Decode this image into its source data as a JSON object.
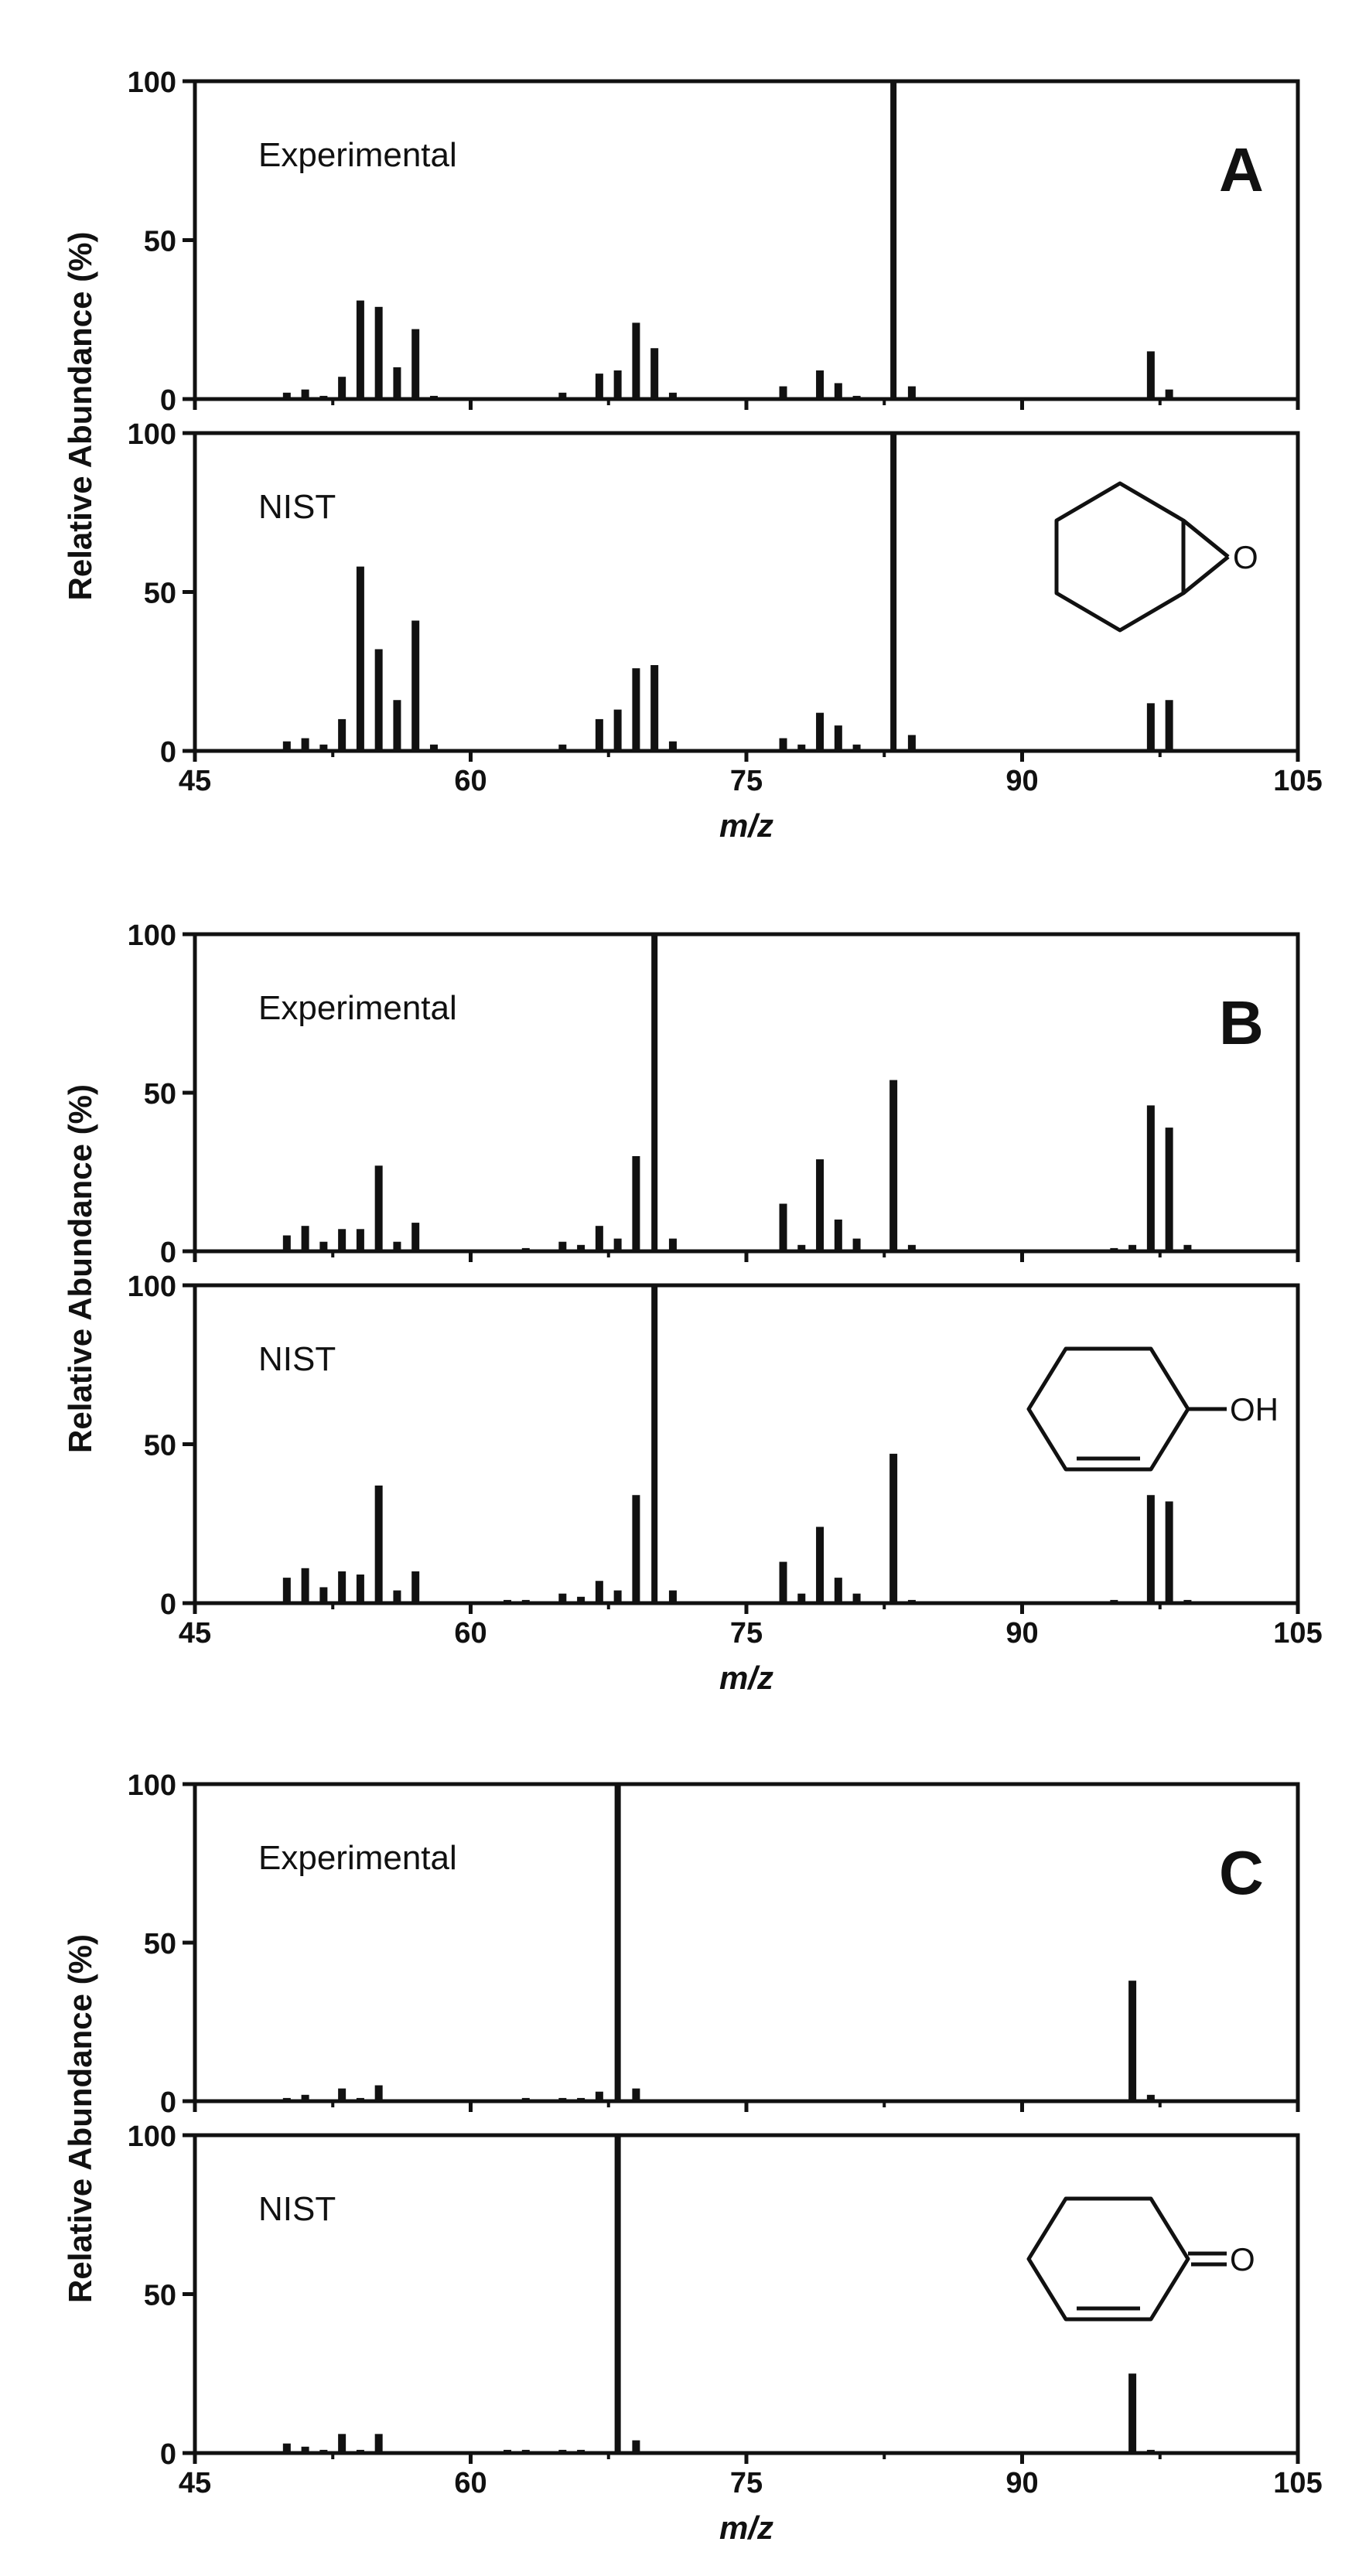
{
  "chart_data": [
    {
      "type": "bar",
      "panel": "A",
      "xlabel": "m/z",
      "ylabel": "Relative Abundance (%)",
      "xlim": [
        45,
        105
      ],
      "ylim": [
        0,
        100
      ],
      "xticks": [
        "45",
        "60",
        "75",
        "90",
        "105"
      ],
      "yticks": [
        "0",
        "50",
        "100"
      ],
      "structure_label": "O",
      "structure": "cyclohexene-oxide",
      "subplots": [
        {
          "label": "Experimental",
          "x": [
            50,
            51,
            52,
            53,
            54,
            55,
            56,
            57,
            58,
            65,
            67,
            68,
            69,
            70,
            71,
            77,
            79,
            80,
            81,
            83,
            84,
            97,
            98
          ],
          "y": [
            2,
            3,
            1,
            7,
            31,
            29,
            10,
            22,
            1,
            2,
            8,
            9,
            24,
            16,
            2,
            4,
            9,
            5,
            1,
            100,
            4,
            15,
            3
          ]
        },
        {
          "label": "NIST",
          "x": [
            50,
            51,
            52,
            53,
            54,
            55,
            56,
            57,
            58,
            65,
            67,
            68,
            69,
            70,
            71,
            77,
            78,
            79,
            80,
            81,
            83,
            84,
            97,
            98
          ],
          "y": [
            3,
            4,
            2,
            10,
            58,
            32,
            16,
            41,
            2,
            2,
            10,
            13,
            26,
            27,
            3,
            4,
            2,
            12,
            8,
            2,
            100,
            5,
            15,
            16
          ]
        }
      ]
    },
    {
      "type": "bar",
      "panel": "B",
      "xlabel": "m/z",
      "ylabel": "Relative Abundance (%)",
      "xlim": [
        45,
        105
      ],
      "ylim": [
        0,
        100
      ],
      "xticks": [
        "45",
        "60",
        "75",
        "90",
        "105"
      ],
      "yticks": [
        "0",
        "50",
        "100"
      ],
      "structure_label": "OH",
      "structure": "cyclohex-2-en-1-ol",
      "subplots": [
        {
          "label": "Experimental",
          "x": [
            50,
            51,
            52,
            53,
            54,
            55,
            56,
            57,
            63,
            65,
            66,
            67,
            68,
            69,
            70,
            71,
            77,
            78,
            79,
            80,
            81,
            83,
            84,
            95,
            96,
            97,
            98,
            99
          ],
          "y": [
            5,
            8,
            3,
            7,
            7,
            27,
            3,
            9,
            1,
            3,
            2,
            8,
            4,
            30,
            100,
            4,
            15,
            2,
            29,
            10,
            4,
            54,
            2,
            1,
            2,
            46,
            39,
            2
          ]
        },
        {
          "label": "NIST",
          "x": [
            50,
            51,
            52,
            53,
            54,
            55,
            56,
            57,
            62,
            63,
            65,
            66,
            67,
            68,
            69,
            70,
            71,
            77,
            78,
            79,
            80,
            81,
            83,
            84,
            95,
            97,
            98,
            99
          ],
          "y": [
            8,
            11,
            5,
            10,
            9,
            37,
            4,
            10,
            1,
            1,
            3,
            2,
            7,
            4,
            34,
            100,
            4,
            13,
            3,
            24,
            8,
            3,
            47,
            1,
            1,
            34,
            32,
            1
          ]
        }
      ]
    },
    {
      "type": "bar",
      "panel": "C",
      "xlabel": "m/z",
      "ylabel": "Relative Abundance (%)",
      "xlim": [
        45,
        105
      ],
      "ylim": [
        0,
        100
      ],
      "xticks": [
        "45",
        "60",
        "75",
        "90",
        "105"
      ],
      "yticks": [
        "0",
        "50",
        "100"
      ],
      "structure_label": "O",
      "structure": "cyclohex-2-en-1-one",
      "subplots": [
        {
          "label": "Experimental",
          "x": [
            50,
            51,
            53,
            54,
            55,
            63,
            65,
            66,
            67,
            68,
            69,
            96,
            97
          ],
          "y": [
            1,
            2,
            4,
            1,
            5,
            1,
            1,
            1,
            3,
            100,
            4,
            38,
            2
          ]
        },
        {
          "label": "NIST",
          "x": [
            50,
            51,
            52,
            53,
            54,
            55,
            62,
            63,
            65,
            66,
            68,
            69,
            96,
            97
          ],
          "y": [
            3,
            2,
            1,
            6,
            1,
            6,
            1,
            1,
            1,
            1,
            100,
            4,
            25,
            1
          ]
        }
      ]
    }
  ]
}
